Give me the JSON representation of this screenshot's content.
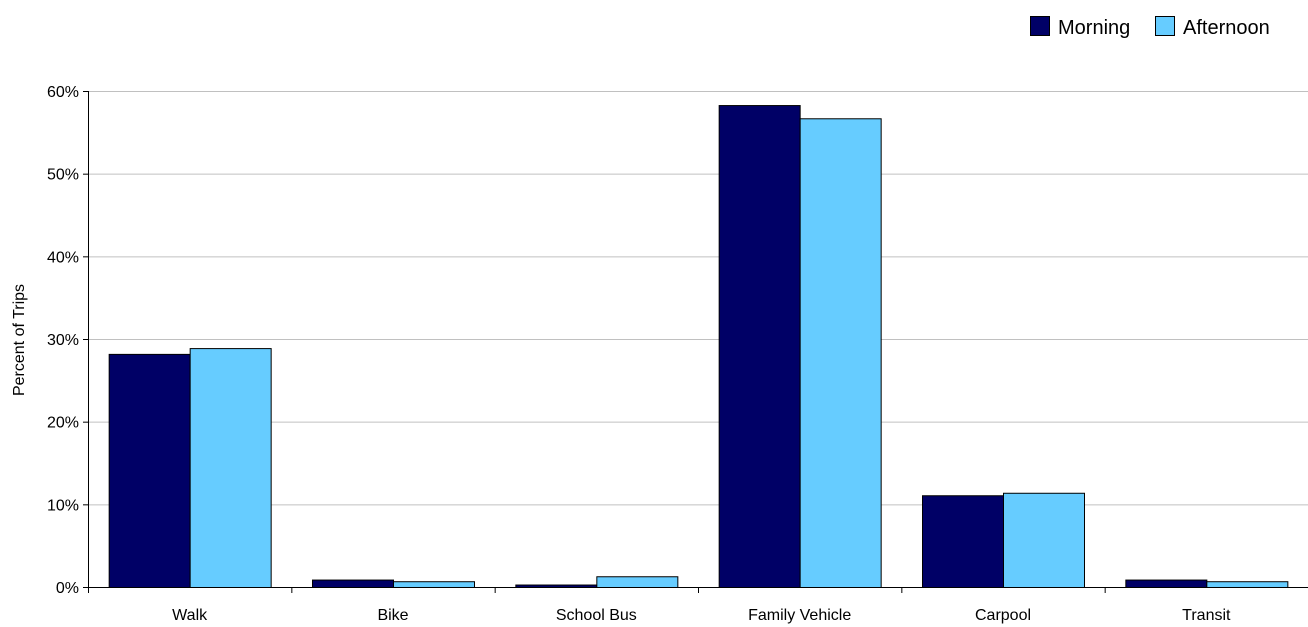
{
  "chart_data": {
    "type": "bar",
    "title": "",
    "xlabel": "",
    "ylabel": "Percent of Trips",
    "ylim": [
      0,
      60
    ],
    "y_ticks": [
      0,
      10,
      20,
      30,
      40,
      50,
      60
    ],
    "y_tick_suffix": "%",
    "grid": true,
    "legend_position": "top-right",
    "categories": [
      "Walk",
      "Bike",
      "School Bus",
      "Family Vehicle",
      "Carpool",
      "Transit"
    ],
    "series": [
      {
        "name": "Morning",
        "color": "#000066",
        "values": [
          28.2,
          0.9,
          0.3,
          58.3,
          11.1,
          0.9
        ]
      },
      {
        "name": "Afternoon",
        "color": "#66ccff",
        "values": [
          28.9,
          0.7,
          1.3,
          56.7,
          11.4,
          0.7
        ]
      }
    ]
  }
}
